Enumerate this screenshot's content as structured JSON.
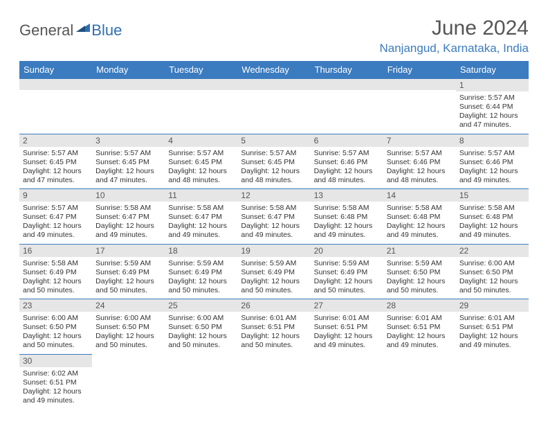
{
  "logo": {
    "text1": "General",
    "text2": "Blue"
  },
  "title": "June 2024",
  "location": "Nanjangud, Karnataka, India",
  "colors": {
    "header_bg": "#3b7bbf",
    "header_text": "#ffffff",
    "daynum_bg": "#e6e6e6",
    "cell_border": "#3b7bbf",
    "title_color": "#555555",
    "location_color": "#3b7bbf"
  },
  "day_headers": [
    "Sunday",
    "Monday",
    "Tuesday",
    "Wednesday",
    "Thursday",
    "Friday",
    "Saturday"
  ],
  "weeks": [
    [
      {
        "blank": true
      },
      {
        "blank": true
      },
      {
        "blank": true
      },
      {
        "blank": true
      },
      {
        "blank": true
      },
      {
        "blank": true
      },
      {
        "num": "1",
        "sunrise": "Sunrise: 5:57 AM",
        "sunset": "Sunset: 6:44 PM",
        "day1": "Daylight: 12 hours",
        "day2": "and 47 minutes."
      }
    ],
    [
      {
        "num": "2",
        "sunrise": "Sunrise: 5:57 AM",
        "sunset": "Sunset: 6:45 PM",
        "day1": "Daylight: 12 hours",
        "day2": "and 47 minutes."
      },
      {
        "num": "3",
        "sunrise": "Sunrise: 5:57 AM",
        "sunset": "Sunset: 6:45 PM",
        "day1": "Daylight: 12 hours",
        "day2": "and 47 minutes."
      },
      {
        "num": "4",
        "sunrise": "Sunrise: 5:57 AM",
        "sunset": "Sunset: 6:45 PM",
        "day1": "Daylight: 12 hours",
        "day2": "and 48 minutes."
      },
      {
        "num": "5",
        "sunrise": "Sunrise: 5:57 AM",
        "sunset": "Sunset: 6:45 PM",
        "day1": "Daylight: 12 hours",
        "day2": "and 48 minutes."
      },
      {
        "num": "6",
        "sunrise": "Sunrise: 5:57 AM",
        "sunset": "Sunset: 6:46 PM",
        "day1": "Daylight: 12 hours",
        "day2": "and 48 minutes."
      },
      {
        "num": "7",
        "sunrise": "Sunrise: 5:57 AM",
        "sunset": "Sunset: 6:46 PM",
        "day1": "Daylight: 12 hours",
        "day2": "and 48 minutes."
      },
      {
        "num": "8",
        "sunrise": "Sunrise: 5:57 AM",
        "sunset": "Sunset: 6:46 PM",
        "day1": "Daylight: 12 hours",
        "day2": "and 49 minutes."
      }
    ],
    [
      {
        "num": "9",
        "sunrise": "Sunrise: 5:57 AM",
        "sunset": "Sunset: 6:47 PM",
        "day1": "Daylight: 12 hours",
        "day2": "and 49 minutes."
      },
      {
        "num": "10",
        "sunrise": "Sunrise: 5:58 AM",
        "sunset": "Sunset: 6:47 PM",
        "day1": "Daylight: 12 hours",
        "day2": "and 49 minutes."
      },
      {
        "num": "11",
        "sunrise": "Sunrise: 5:58 AM",
        "sunset": "Sunset: 6:47 PM",
        "day1": "Daylight: 12 hours",
        "day2": "and 49 minutes."
      },
      {
        "num": "12",
        "sunrise": "Sunrise: 5:58 AM",
        "sunset": "Sunset: 6:47 PM",
        "day1": "Daylight: 12 hours",
        "day2": "and 49 minutes."
      },
      {
        "num": "13",
        "sunrise": "Sunrise: 5:58 AM",
        "sunset": "Sunset: 6:48 PM",
        "day1": "Daylight: 12 hours",
        "day2": "and 49 minutes."
      },
      {
        "num": "14",
        "sunrise": "Sunrise: 5:58 AM",
        "sunset": "Sunset: 6:48 PM",
        "day1": "Daylight: 12 hours",
        "day2": "and 49 minutes."
      },
      {
        "num": "15",
        "sunrise": "Sunrise: 5:58 AM",
        "sunset": "Sunset: 6:48 PM",
        "day1": "Daylight: 12 hours",
        "day2": "and 49 minutes."
      }
    ],
    [
      {
        "num": "16",
        "sunrise": "Sunrise: 5:58 AM",
        "sunset": "Sunset: 6:49 PM",
        "day1": "Daylight: 12 hours",
        "day2": "and 50 minutes."
      },
      {
        "num": "17",
        "sunrise": "Sunrise: 5:59 AM",
        "sunset": "Sunset: 6:49 PM",
        "day1": "Daylight: 12 hours",
        "day2": "and 50 minutes."
      },
      {
        "num": "18",
        "sunrise": "Sunrise: 5:59 AM",
        "sunset": "Sunset: 6:49 PM",
        "day1": "Daylight: 12 hours",
        "day2": "and 50 minutes."
      },
      {
        "num": "19",
        "sunrise": "Sunrise: 5:59 AM",
        "sunset": "Sunset: 6:49 PM",
        "day1": "Daylight: 12 hours",
        "day2": "and 50 minutes."
      },
      {
        "num": "20",
        "sunrise": "Sunrise: 5:59 AM",
        "sunset": "Sunset: 6:49 PM",
        "day1": "Daylight: 12 hours",
        "day2": "and 50 minutes."
      },
      {
        "num": "21",
        "sunrise": "Sunrise: 5:59 AM",
        "sunset": "Sunset: 6:50 PM",
        "day1": "Daylight: 12 hours",
        "day2": "and 50 minutes."
      },
      {
        "num": "22",
        "sunrise": "Sunrise: 6:00 AM",
        "sunset": "Sunset: 6:50 PM",
        "day1": "Daylight: 12 hours",
        "day2": "and 50 minutes."
      }
    ],
    [
      {
        "num": "23",
        "sunrise": "Sunrise: 6:00 AM",
        "sunset": "Sunset: 6:50 PM",
        "day1": "Daylight: 12 hours",
        "day2": "and 50 minutes."
      },
      {
        "num": "24",
        "sunrise": "Sunrise: 6:00 AM",
        "sunset": "Sunset: 6:50 PM",
        "day1": "Daylight: 12 hours",
        "day2": "and 50 minutes."
      },
      {
        "num": "25",
        "sunrise": "Sunrise: 6:00 AM",
        "sunset": "Sunset: 6:50 PM",
        "day1": "Daylight: 12 hours",
        "day2": "and 50 minutes."
      },
      {
        "num": "26",
        "sunrise": "Sunrise: 6:01 AM",
        "sunset": "Sunset: 6:51 PM",
        "day1": "Daylight: 12 hours",
        "day2": "and 50 minutes."
      },
      {
        "num": "27",
        "sunrise": "Sunrise: 6:01 AM",
        "sunset": "Sunset: 6:51 PM",
        "day1": "Daylight: 12 hours",
        "day2": "and 49 minutes."
      },
      {
        "num": "28",
        "sunrise": "Sunrise: 6:01 AM",
        "sunset": "Sunset: 6:51 PM",
        "day1": "Daylight: 12 hours",
        "day2": "and 49 minutes."
      },
      {
        "num": "29",
        "sunrise": "Sunrise: 6:01 AM",
        "sunset": "Sunset: 6:51 PM",
        "day1": "Daylight: 12 hours",
        "day2": "and 49 minutes."
      }
    ],
    [
      {
        "num": "30",
        "sunrise": "Sunrise: 6:02 AM",
        "sunset": "Sunset: 6:51 PM",
        "day1": "Daylight: 12 hours",
        "day2": "and 49 minutes."
      },
      {
        "blank": true
      },
      {
        "blank": true
      },
      {
        "blank": true
      },
      {
        "blank": true
      },
      {
        "blank": true
      },
      {
        "blank": true
      }
    ]
  ]
}
